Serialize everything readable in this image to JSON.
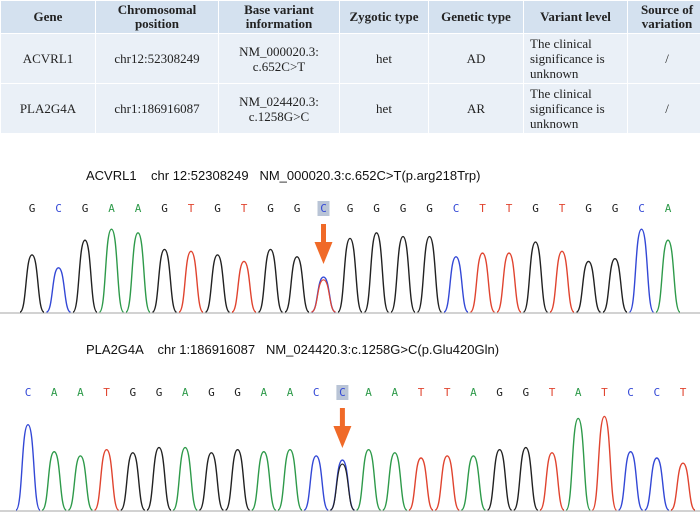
{
  "table": {
    "headers": [
      "Gene",
      "Chromosomal position",
      "Base variant information",
      "Zygotic type",
      "Genetic  type",
      "Variant level",
      "Source of variation"
    ],
    "rows": [
      [
        "ACVRL1",
        "chr12:52308249",
        "NM_000020.3: c.652C>T",
        "het",
        "AD",
        "The clinical significance is unknown",
        "/"
      ],
      [
        "PLA2G4A",
        "chr1:186916087",
        "NM_024420.3: c.1258G>C",
        "het",
        "AR",
        "The clinical significance is unknown",
        "/"
      ]
    ]
  },
  "traces": [
    {
      "title": "ACVRL1    chr 12:52308249   NM_000020.3:c.652C>T(p.arg218Trp)",
      "bases": [
        "G",
        "C",
        "G",
        "A",
        "A",
        "G",
        "T",
        "G",
        "T",
        "G",
        "G",
        "C",
        "G",
        "G",
        "G",
        "G",
        "C",
        "T",
        "T",
        "G",
        "T",
        "G",
        "G",
        "C",
        "A"
      ],
      "variant_index": 11
    },
    {
      "title": "PLA2G4A    chr 1:186916087   NM_024420.3:c.1258G>C(p.Glu420Gln)",
      "bases": [
        "C",
        "A",
        "A",
        "T",
        "G",
        "G",
        "A",
        "G",
        "G",
        "A",
        "A",
        "C",
        "C",
        "A",
        "A",
        "T",
        "T",
        "A",
        "G",
        "G",
        "T",
        "A",
        "T",
        "C",
        "C",
        "T"
      ],
      "variant_index": 12
    }
  ],
  "colors": {
    "A": "#2e9a4a",
    "C": "#3348d6",
    "G": "#222222",
    "T": "#e0442f",
    "arrow": "#f06a28",
    "highlight": "#b9c4d6"
  }
}
